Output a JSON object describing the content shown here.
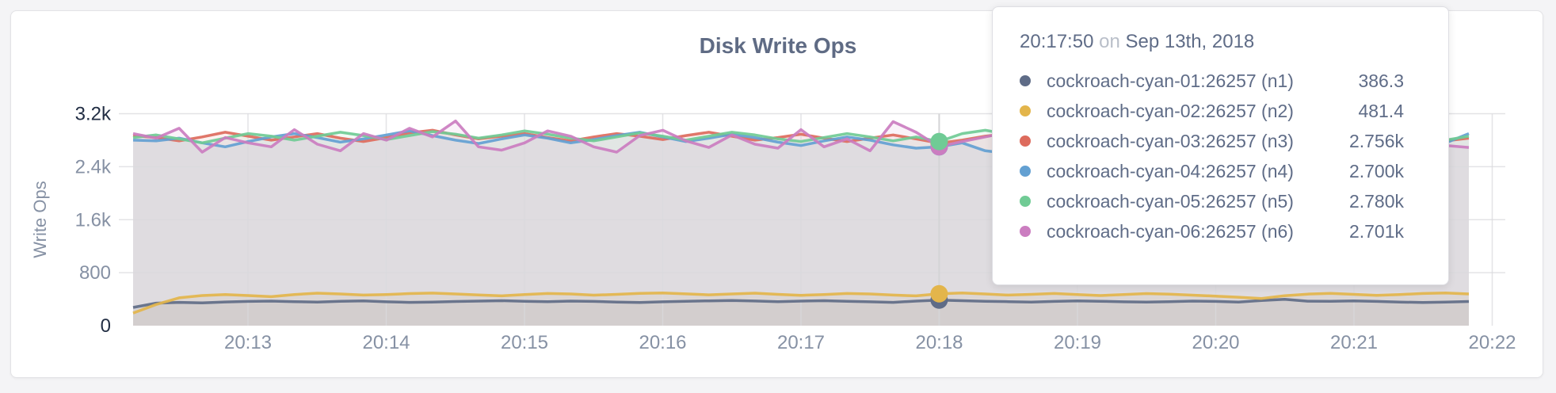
{
  "page": {
    "background": "#f4f4f6"
  },
  "card": {
    "title": "Disk Write Ops"
  },
  "chart_data": {
    "type": "line",
    "title": "Disk Write Ops",
    "xlabel": "",
    "ylabel": "Write Ops",
    "ylim": [
      0,
      3200
    ],
    "grid": true,
    "legend_position": "tooltip-overlay",
    "y_ticks": [
      {
        "label": "3.2k",
        "value": 3200,
        "emphasis": true
      },
      {
        "label": "2.4k",
        "value": 2400,
        "emphasis": false
      },
      {
        "label": "1.6k",
        "value": 1600,
        "emphasis": false
      },
      {
        "label": "800",
        "value": 800,
        "emphasis": false
      },
      {
        "label": "0",
        "value": 0,
        "emphasis": true
      }
    ],
    "x_ticks": [
      "20:13",
      "20:14",
      "20:15",
      "20:16",
      "20:17",
      "20:18",
      "20:19",
      "20:20",
      "20:21",
      "20:22"
    ],
    "x_start": "20:12:10",
    "x_end": "20:21:50",
    "sample_interval_sec": 10,
    "hover_index": 35,
    "hover_time": "20:17:50",
    "series": [
      {
        "name": "cockroach-cyan-01:26257 (n1)",
        "color": "#5f6c87",
        "values": [
          275,
          340,
          352,
          345,
          358,
          366,
          371,
          362,
          355,
          368,
          374,
          360,
          352,
          357,
          365,
          371,
          377,
          369,
          362,
          371,
          366,
          357,
          349,
          360,
          368,
          374,
          380,
          372,
          363,
          371,
          377,
          368,
          360,
          352,
          371,
          386.3,
          377,
          369,
          362,
          357,
          366,
          374,
          368,
          360,
          355,
          363,
          371,
          366,
          357,
          380,
          398,
          370,
          368,
          374,
          366,
          357,
          349,
          357,
          365
        ]
      },
      {
        "name": "cockroach-cyan-02:26257 (n2)",
        "color": "#e3b54b",
        "values": [
          190,
          320,
          420,
          455,
          470,
          455,
          438,
          470,
          490,
          478,
          462,
          470,
          484,
          492,
          478,
          464,
          450,
          470,
          486,
          478,
          460,
          472,
          488,
          494,
          480,
          465,
          478,
          490,
          472,
          458,
          470,
          486,
          478,
          462,
          450,
          481.4,
          494,
          478,
          462,
          472,
          486,
          470,
          455,
          470,
          484,
          476,
          460,
          446,
          430,
          410,
          452,
          476,
          488,
          472,
          458,
          470,
          486,
          494,
          478
        ]
      },
      {
        "name": "cockroach-cyan-03:26257 (n3)",
        "color": "#dd6b5d",
        "values": [
          2870,
          2840,
          2790,
          2850,
          2920,
          2860,
          2800,
          2850,
          2900,
          2830,
          2780,
          2840,
          2910,
          2950,
          2880,
          2820,
          2860,
          2900,
          2840,
          2790,
          2850,
          2900,
          2860,
          2810,
          2870,
          2920,
          2860,
          2800,
          2840,
          2890,
          2830,
          2780,
          2830,
          2880,
          2820,
          2756,
          2800,
          2860,
          2900,
          2840,
          2790,
          2840,
          2890,
          2930,
          2870,
          2810,
          2860,
          2900,
          2850,
          2800,
          2850,
          2890,
          2840,
          2790,
          2840,
          2880,
          2830,
          2790,
          2830
        ]
      },
      {
        "name": "cockroach-cyan-04:26257 (n4)",
        "color": "#63a0d2",
        "values": [
          2800,
          2790,
          2830,
          2760,
          2700,
          2780,
          2850,
          2900,
          2840,
          2770,
          2820,
          2880,
          2940,
          2870,
          2800,
          2750,
          2820,
          2880,
          2830,
          2760,
          2810,
          2870,
          2920,
          2850,
          2780,
          2830,
          2890,
          2840,
          2770,
          2720,
          2790,
          2850,
          2800,
          2730,
          2680,
          2700,
          2760,
          2640,
          2600,
          2700,
          2780,
          2840,
          2780,
          2720,
          2780,
          2850,
          2900,
          2840,
          2770,
          2820,
          2870,
          2810,
          2750,
          2800,
          2860,
          2900,
          2830,
          2760,
          2900
        ]
      },
      {
        "name": "cockroach-cyan-05:26257 (n5)",
        "color": "#70cb95",
        "values": [
          2840,
          2880,
          2820,
          2760,
          2830,
          2900,
          2860,
          2800,
          2860,
          2920,
          2870,
          2810,
          2870,
          2930,
          2890,
          2830,
          2880,
          2940,
          2890,
          2830,
          2790,
          2850,
          2910,
          2860,
          2800,
          2860,
          2920,
          2880,
          2820,
          2780,
          2840,
          2900,
          2850,
          2790,
          2850,
          2780,
          2900,
          2950,
          2890,
          2820,
          2780,
          2840,
          2900,
          2860,
          2800,
          2850,
          2910,
          2870,
          2810,
          2770,
          2830,
          2890,
          2840,
          2780,
          2840,
          2900,
          2850,
          2800,
          2860
        ]
      },
      {
        "name": "cockroach-cyan-06:26257 (n6)",
        "color": "#cb7dc0",
        "values": [
          2900,
          2830,
          2980,
          2620,
          2840,
          2760,
          2700,
          2960,
          2740,
          2640,
          2900,
          2800,
          2980,
          2850,
          3090,
          2700,
          2650,
          2760,
          2940,
          2860,
          2700,
          2620,
          2870,
          2950,
          2790,
          2690,
          2880,
          2740,
          2680,
          2960,
          2700,
          2820,
          2640,
          3080,
          2920,
          2701,
          2780,
          2850,
          2920,
          2690,
          2780,
          2640,
          2900,
          2850,
          2700,
          2920,
          2640,
          2730,
          2810,
          2600,
          2750,
          2900,
          2820,
          2700,
          2870,
          2640,
          2780,
          2720,
          2690
        ]
      }
    ]
  },
  "tooltip": {
    "time": "20:17:50",
    "on_word": "on",
    "date": "Sep 13th, 2018",
    "rows": [
      {
        "name": "cockroach-cyan-01:26257 (n1)",
        "value": "386.3",
        "color": "#5f6c87"
      },
      {
        "name": "cockroach-cyan-02:26257 (n2)",
        "value": "481.4",
        "color": "#e3b54b"
      },
      {
        "name": "cockroach-cyan-03:26257 (n3)",
        "value": "2.756k",
        "color": "#dd6b5d"
      },
      {
        "name": "cockroach-cyan-04:26257 (n4)",
        "value": "2.700k",
        "color": "#63a0d2"
      },
      {
        "name": "cockroach-cyan-05:26257 (n5)",
        "value": "2.780k",
        "color": "#70cb95"
      },
      {
        "name": "cockroach-cyan-06:26257 (n6)",
        "value": "2.701k",
        "color": "#cb7dc0"
      }
    ]
  },
  "colors": {
    "tick_dark": "#222e44",
    "tick_light": "#8691a4",
    "grid": "#d9d9dd",
    "guideline": "#d4d4d6",
    "title": "#5f6b84"
  }
}
